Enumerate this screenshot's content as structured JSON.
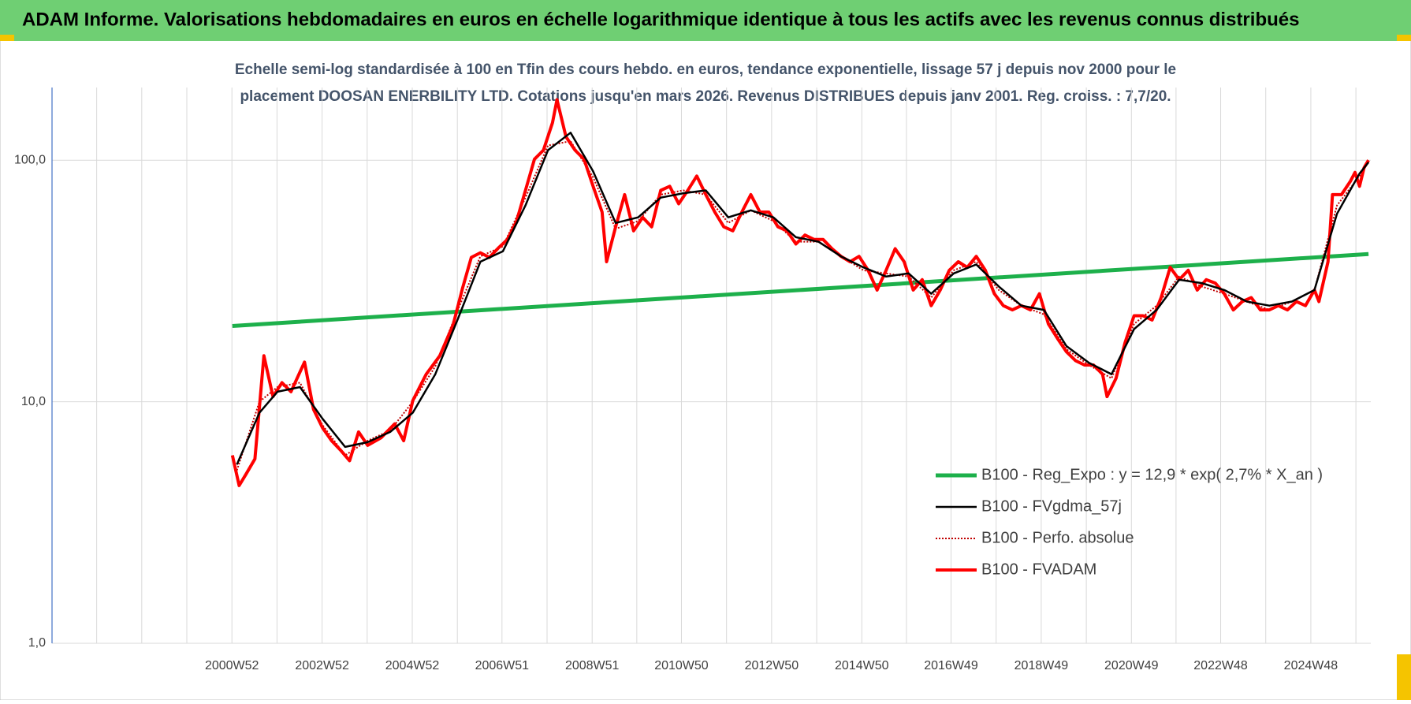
{
  "chart_data": {
    "type": "line",
    "title": "ADAM Informe. Valorisations hebdomadaires en euros en échelle logarithmique identique à tous les actifs avec les revenus connus distribués",
    "subtitle": [
      "Echelle semi-log standardisée à 100 en Tfin des cours hebdo. en euros, tendance exponentielle, lissage 57 j depuis nov 2000 pour le",
      "placement DOOSAN ENERBILITY LTD. Cotations jusqu'en mars 2026.  Revenus DISTRIBUES depuis janv 2001. Reg. croiss. : 7,7/20."
    ],
    "log_y": true,
    "grid": true,
    "xlim": [
      1997.0,
      2026.25
    ],
    "xticks": [
      {
        "value": 2000.99,
        "label": "2000W52"
      },
      {
        "value": 2002.99,
        "label": "2002W52"
      },
      {
        "value": 2004.99,
        "label": "2004W52"
      },
      {
        "value": 2006.98,
        "label": "2006W51"
      },
      {
        "value": 2008.98,
        "label": "2008W51"
      },
      {
        "value": 2010.96,
        "label": "2010W50"
      },
      {
        "value": 2012.96,
        "label": "2012W50"
      },
      {
        "value": 2014.96,
        "label": "2014W50"
      },
      {
        "value": 2016.94,
        "label": "2016W49"
      },
      {
        "value": 2018.94,
        "label": "2018W49"
      },
      {
        "value": 2020.94,
        "label": "2020W49"
      },
      {
        "value": 2022.92,
        "label": "2022W48"
      },
      {
        "value": 2024.92,
        "label": "2024W48"
      }
    ],
    "xminorticks": [
      1997.99,
      1998.99,
      1999.99,
      2001.99,
      2003.99,
      2005.99,
      2007.98,
      2009.97,
      2011.96,
      2013.96,
      2015.95,
      2017.94,
      2019.94,
      2021.93,
      2023.92,
      2025.92
    ],
    "ylim": [
      1,
      200
    ],
    "yticks": [
      {
        "value": 1,
        "label": "1,0"
      },
      {
        "value": 10,
        "label": "10,0"
      },
      {
        "value": 100,
        "label": "100,0"
      }
    ],
    "series": [
      {
        "name": "B100 - Reg_Expo : y = 12,9 * exp( 2,7% *  X_an )",
        "color": "#1db04b",
        "x": [
          2001.0,
          2026.2
        ],
        "values": [
          20.6,
          40.9
        ]
      },
      {
        "name": "B100 - FVgdma_57j",
        "color": "#000000",
        "x": [
          2001.1,
          2001.6,
          2002.0,
          2002.5,
          2003.0,
          2003.5,
          2004.0,
          2004.5,
          2005.0,
          2005.5,
          2006.0,
          2006.5,
          2007.0,
          2007.5,
          2008.0,
          2008.5,
          2009.0,
          2009.5,
          2010.0,
          2010.5,
          2011.0,
          2011.5,
          2012.0,
          2012.5,
          2013.0,
          2013.5,
          2014.0,
          2014.5,
          2015.0,
          2015.5,
          2016.0,
          2016.5,
          2017.0,
          2017.5,
          2018.0,
          2018.5,
          2019.0,
          2019.5,
          2020.0,
          2020.5,
          2021.0,
          2021.5,
          2022.0,
          2022.5,
          2023.0,
          2023.5,
          2024.0,
          2024.5,
          2025.0,
          2025.5,
          2026.0,
          2026.2
        ],
        "values": [
          5.5,
          9,
          11,
          11.5,
          8.5,
          6.5,
          6.8,
          7.5,
          9,
          13,
          22,
          38,
          42,
          65,
          110,
          130,
          90,
          55,
          58,
          70,
          73,
          75,
          58,
          62,
          58,
          48,
          46,
          40,
          36,
          33,
          34,
          28,
          34,
          37,
          30,
          25,
          24,
          17,
          14.5,
          13,
          20,
          24,
          32,
          31,
          29,
          26,
          25,
          26,
          29,
          60,
          88,
          98
        ]
      },
      {
        "name": "B100 - Perfo. absolue",
        "color": "#c00000",
        "style": "dotted",
        "x": [
          2001.1,
          2001.6,
          2002.0,
          2002.5,
          2003.0,
          2003.5,
          2004.0,
          2004.5,
          2005.0,
          2005.5,
          2006.0,
          2006.5,
          2007.0,
          2007.5,
          2008.0,
          2008.5,
          2009.0,
          2009.5,
          2010.0,
          2010.5,
          2011.0,
          2011.5,
          2012.0,
          2012.5,
          2013.0,
          2013.5,
          2014.0,
          2014.5,
          2015.0,
          2015.5,
          2016.0,
          2016.5,
          2017.0,
          2017.5,
          2018.0,
          2018.5,
          2019.0,
          2019.5,
          2020.0,
          2020.5,
          2021.0,
          2021.5,
          2022.0,
          2022.5,
          2023.0,
          2023.5,
          2024.0,
          2024.5,
          2025.0,
          2025.5,
          2026.0,
          2026.2
        ],
        "values": [
          5.2,
          10,
          11.5,
          12,
          8,
          6,
          6.9,
          7.6,
          10,
          14,
          24,
          40,
          44,
          70,
          115,
          120,
          85,
          52,
          56,
          72,
          75,
          72,
          55,
          62,
          56,
          46,
          46,
          40,
          35,
          34,
          33,
          27,
          35,
          38,
          29,
          25,
          23,
          16.5,
          14.2,
          12.5,
          21,
          25,
          33,
          30,
          28,
          26,
          24,
          26,
          29,
          65,
          86,
          99
        ]
      },
      {
        "name": "B100 - FVADAM",
        "color": "#ff0000",
        "x": [
          2001.0,
          2001.15,
          2001.3,
          2001.5,
          2001.7,
          2001.9,
          2002.1,
          2002.3,
          2002.6,
          2002.8,
          2003.0,
          2003.2,
          2003.4,
          2003.6,
          2003.8,
          2004.0,
          2004.3,
          2004.6,
          2004.8,
          2005.0,
          2005.3,
          2005.6,
          2005.9,
          2006.1,
          2006.3,
          2006.5,
          2006.7,
          2006.9,
          2007.1,
          2007.3,
          2007.5,
          2007.7,
          2007.9,
          2008.1,
          2008.2,
          2008.4,
          2008.6,
          2008.8,
          2009.0,
          2009.2,
          2009.3,
          2009.5,
          2009.7,
          2009.9,
          2010.1,
          2010.3,
          2010.5,
          2010.7,
          2010.9,
          2011.1,
          2011.3,
          2011.5,
          2011.7,
          2011.9,
          2012.1,
          2012.3,
          2012.5,
          2012.7,
          2012.9,
          2013.1,
          2013.3,
          2013.5,
          2013.7,
          2013.9,
          2014.1,
          2014.3,
          2014.5,
          2014.7,
          2014.9,
          2015.1,
          2015.3,
          2015.5,
          2015.7,
          2015.9,
          2016.1,
          2016.3,
          2016.5,
          2016.7,
          2016.9,
          2017.1,
          2017.3,
          2017.5,
          2017.7,
          2017.9,
          2018.1,
          2018.3,
          2018.5,
          2018.7,
          2018.9,
          2019.1,
          2019.3,
          2019.5,
          2019.7,
          2019.9,
          2020.1,
          2020.3,
          2020.4,
          2020.6,
          2020.8,
          2021.0,
          2021.2,
          2021.4,
          2021.6,
          2021.8,
          2022.0,
          2022.2,
          2022.4,
          2022.6,
          2022.8,
          2023.0,
          2023.2,
          2023.4,
          2023.6,
          2023.8,
          2024.0,
          2024.2,
          2024.4,
          2024.6,
          2024.8,
          2025.0,
          2025.1,
          2025.3,
          2025.4,
          2025.6,
          2025.8,
          2025.9,
          2026.0,
          2026.1,
          2026.2
        ],
        "values": [
          6.0,
          4.5,
          5.0,
          5.8,
          15.5,
          10.5,
          12,
          11,
          14.6,
          9.3,
          7.8,
          6.9,
          6.3,
          5.7,
          7.5,
          6.6,
          7.1,
          8.1,
          6.9,
          10.1,
          13.0,
          15.5,
          20.9,
          29.3,
          39.6,
          41.4,
          39.6,
          43.3,
          47.0,
          55.6,
          75,
          101,
          110,
          143,
          178,
          125,
          110,
          101,
          78,
          61,
          38,
          53,
          72,
          51,
          58,
          53,
          75,
          78,
          66,
          75,
          86,
          72,
          61,
          53,
          51,
          61,
          72,
          61,
          61,
          53,
          51,
          45,
          49,
          47,
          47,
          43,
          40,
          38,
          40,
          35,
          29,
          35,
          43,
          38,
          29,
          32,
          25,
          29,
          35,
          38,
          36,
          40,
          35,
          28,
          25,
          24,
          25,
          24,
          28,
          21,
          18.3,
          16.1,
          14.8,
          14.2,
          14.2,
          13.0,
          10.5,
          12.5,
          17.6,
          22.7,
          22.7,
          21.8,
          27,
          36,
          32,
          35,
          29,
          32,
          31,
          28,
          24,
          26,
          27,
          24,
          24,
          25,
          24,
          26,
          25,
          29,
          26,
          38,
          72,
          72,
          82,
          89,
          78,
          93,
          100
        ]
      }
    ]
  }
}
